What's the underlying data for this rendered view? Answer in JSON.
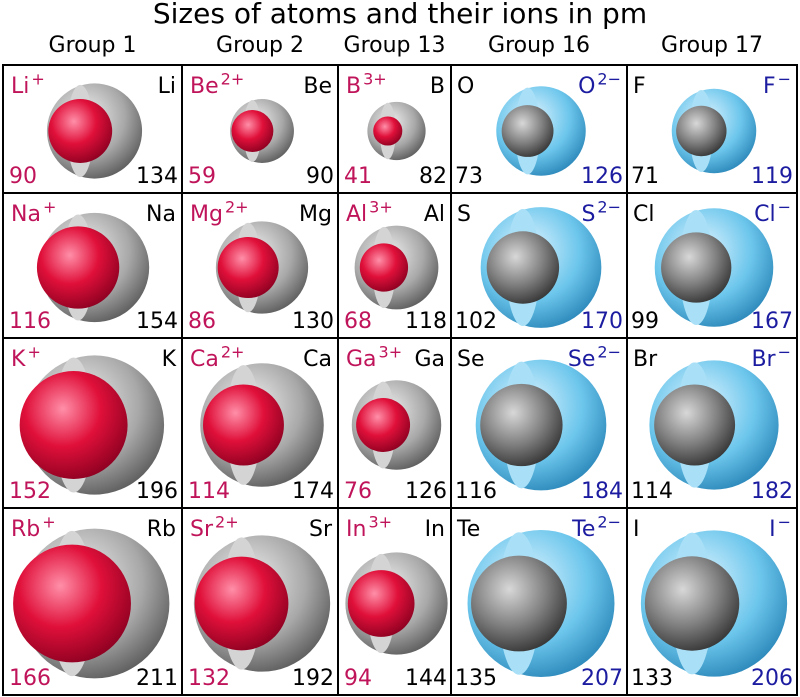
{
  "title": "Sizes of atoms and their ions in pm",
  "groups": [
    "Group 1",
    "Group 2",
    "Group 13",
    "Group 16",
    "Group 17"
  ],
  "rows": [
    [
      {
        "ion": "Li",
        "charge": "+",
        "atom": "Li",
        "ion_radius": 90,
        "atom_radius": 134
      },
      {
        "ion": "Be",
        "charge": "2+",
        "atom": "Be",
        "ion_radius": 59,
        "atom_radius": 90
      },
      {
        "ion": "B",
        "charge": "3+",
        "atom": "B",
        "ion_radius": 41,
        "atom_radius": 82
      },
      {
        "ion": "O",
        "charge": "2−",
        "atom": "O",
        "ion_radius": 126,
        "atom_radius": 73
      },
      {
        "ion": "F",
        "charge": "−",
        "atom": "F",
        "ion_radius": 119,
        "atom_radius": 71
      }
    ],
    [
      {
        "ion": "Na",
        "charge": "+",
        "atom": "Na",
        "ion_radius": 116,
        "atom_radius": 154
      },
      {
        "ion": "Mg",
        "charge": "2+",
        "atom": "Mg",
        "ion_radius": 86,
        "atom_radius": 130
      },
      {
        "ion": "Al",
        "charge": "3+",
        "atom": "Al",
        "ion_radius": 68,
        "atom_radius": 118
      },
      {
        "ion": "S",
        "charge": "2−",
        "atom": "S",
        "ion_radius": 170,
        "atom_radius": 102
      },
      {
        "ion": "Cl",
        "charge": "−",
        "atom": "Cl",
        "ion_radius": 167,
        "atom_radius": 99
      }
    ],
    [
      {
        "ion": "K",
        "charge": "+",
        "atom": "K",
        "ion_radius": 152,
        "atom_radius": 196
      },
      {
        "ion": "Ca",
        "charge": "2+",
        "atom": "Ca",
        "ion_radius": 114,
        "atom_radius": 174
      },
      {
        "ion": "Ga",
        "charge": "3+",
        "atom": "Ga",
        "ion_radius": 76,
        "atom_radius": 126
      },
      {
        "ion": "Se",
        "charge": "2−",
        "atom": "Se",
        "ion_radius": 184,
        "atom_radius": 116
      },
      {
        "ion": "Br",
        "charge": "−",
        "atom": "Br",
        "ion_radius": 182,
        "atom_radius": 114
      }
    ],
    [
      {
        "ion": "Rb",
        "charge": "+",
        "atom": "Rb",
        "ion_radius": 166,
        "atom_radius": 211
      },
      {
        "ion": "Sr",
        "charge": "2+",
        "atom": "Sr",
        "ion_radius": 132,
        "atom_radius": 192
      },
      {
        "ion": "In",
        "charge": "3+",
        "atom": "In",
        "ion_radius": 94,
        "atom_radius": 144
      },
      {
        "ion": "Te",
        "charge": "2−",
        "atom": "Te",
        "ion_radius": 207,
        "atom_radius": 135
      },
      {
        "ion": "I",
        "charge": "−",
        "atom": "I",
        "ion_radius": 206,
        "atom_radius": 133
      }
    ]
  ]
}
